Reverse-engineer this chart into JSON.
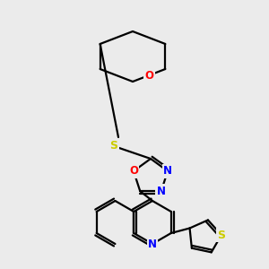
{
  "background_color": "#ebebeb",
  "bond_color": "#000000",
  "atom_colors": {
    "O": "#ff0000",
    "N": "#0000ff",
    "S": "#cccc00",
    "C": "#000000"
  },
  "line_width": 1.6,
  "font_size": 8.5,
  "figsize": [
    3.0,
    3.0
  ],
  "dpi": 100
}
